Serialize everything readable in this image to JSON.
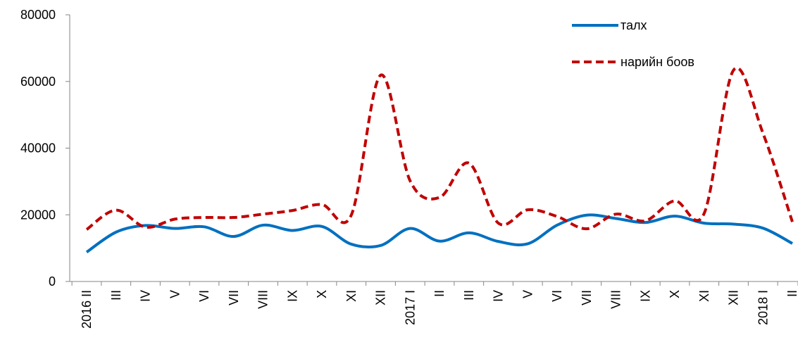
{
  "chart_data": {
    "type": "line",
    "title": "",
    "xlabel": "",
    "ylabel": "",
    "categories": [
      "2016 II",
      "III",
      "IV",
      "V",
      "VI",
      "VII",
      "VIII",
      "IX",
      "X",
      "XI",
      "XII",
      "2017 I",
      "II",
      "III",
      "IV",
      "V",
      "VI",
      "VII",
      "VIII",
      "IX",
      "X",
      "XI",
      "XII",
      "2018 I",
      "II"
    ],
    "ylim": [
      0,
      80000
    ],
    "yticks": [
      0,
      20000,
      40000,
      60000,
      80000
    ],
    "ytick_labels": [
      "0",
      "20000",
      "40000",
      "60000",
      "80000"
    ],
    "grid": false,
    "legend_position": "top-right",
    "series": [
      {
        "name": "талх",
        "color": "#0070C0",
        "style": "solid",
        "values": [
          8800,
          14800,
          16800,
          15900,
          16400,
          13500,
          16900,
          15300,
          16500,
          11200,
          10800,
          15900,
          12100,
          14600,
          12000,
          11300,
          16900,
          19900,
          18900,
          17700,
          19600,
          17500,
          17200,
          16000,
          11400
        ]
      },
      {
        "name": "нарийн боов",
        "color": "#C00000",
        "style": "dashed",
        "values": [
          15600,
          21400,
          16300,
          18700,
          19200,
          19200,
          20200,
          21300,
          23100,
          19900,
          61900,
          30200,
          25200,
          35500,
          17500,
          21500,
          19500,
          15800,
          20200,
          18200,
          24200,
          20400,
          63400,
          44500,
          17900
        ]
      }
    ]
  }
}
